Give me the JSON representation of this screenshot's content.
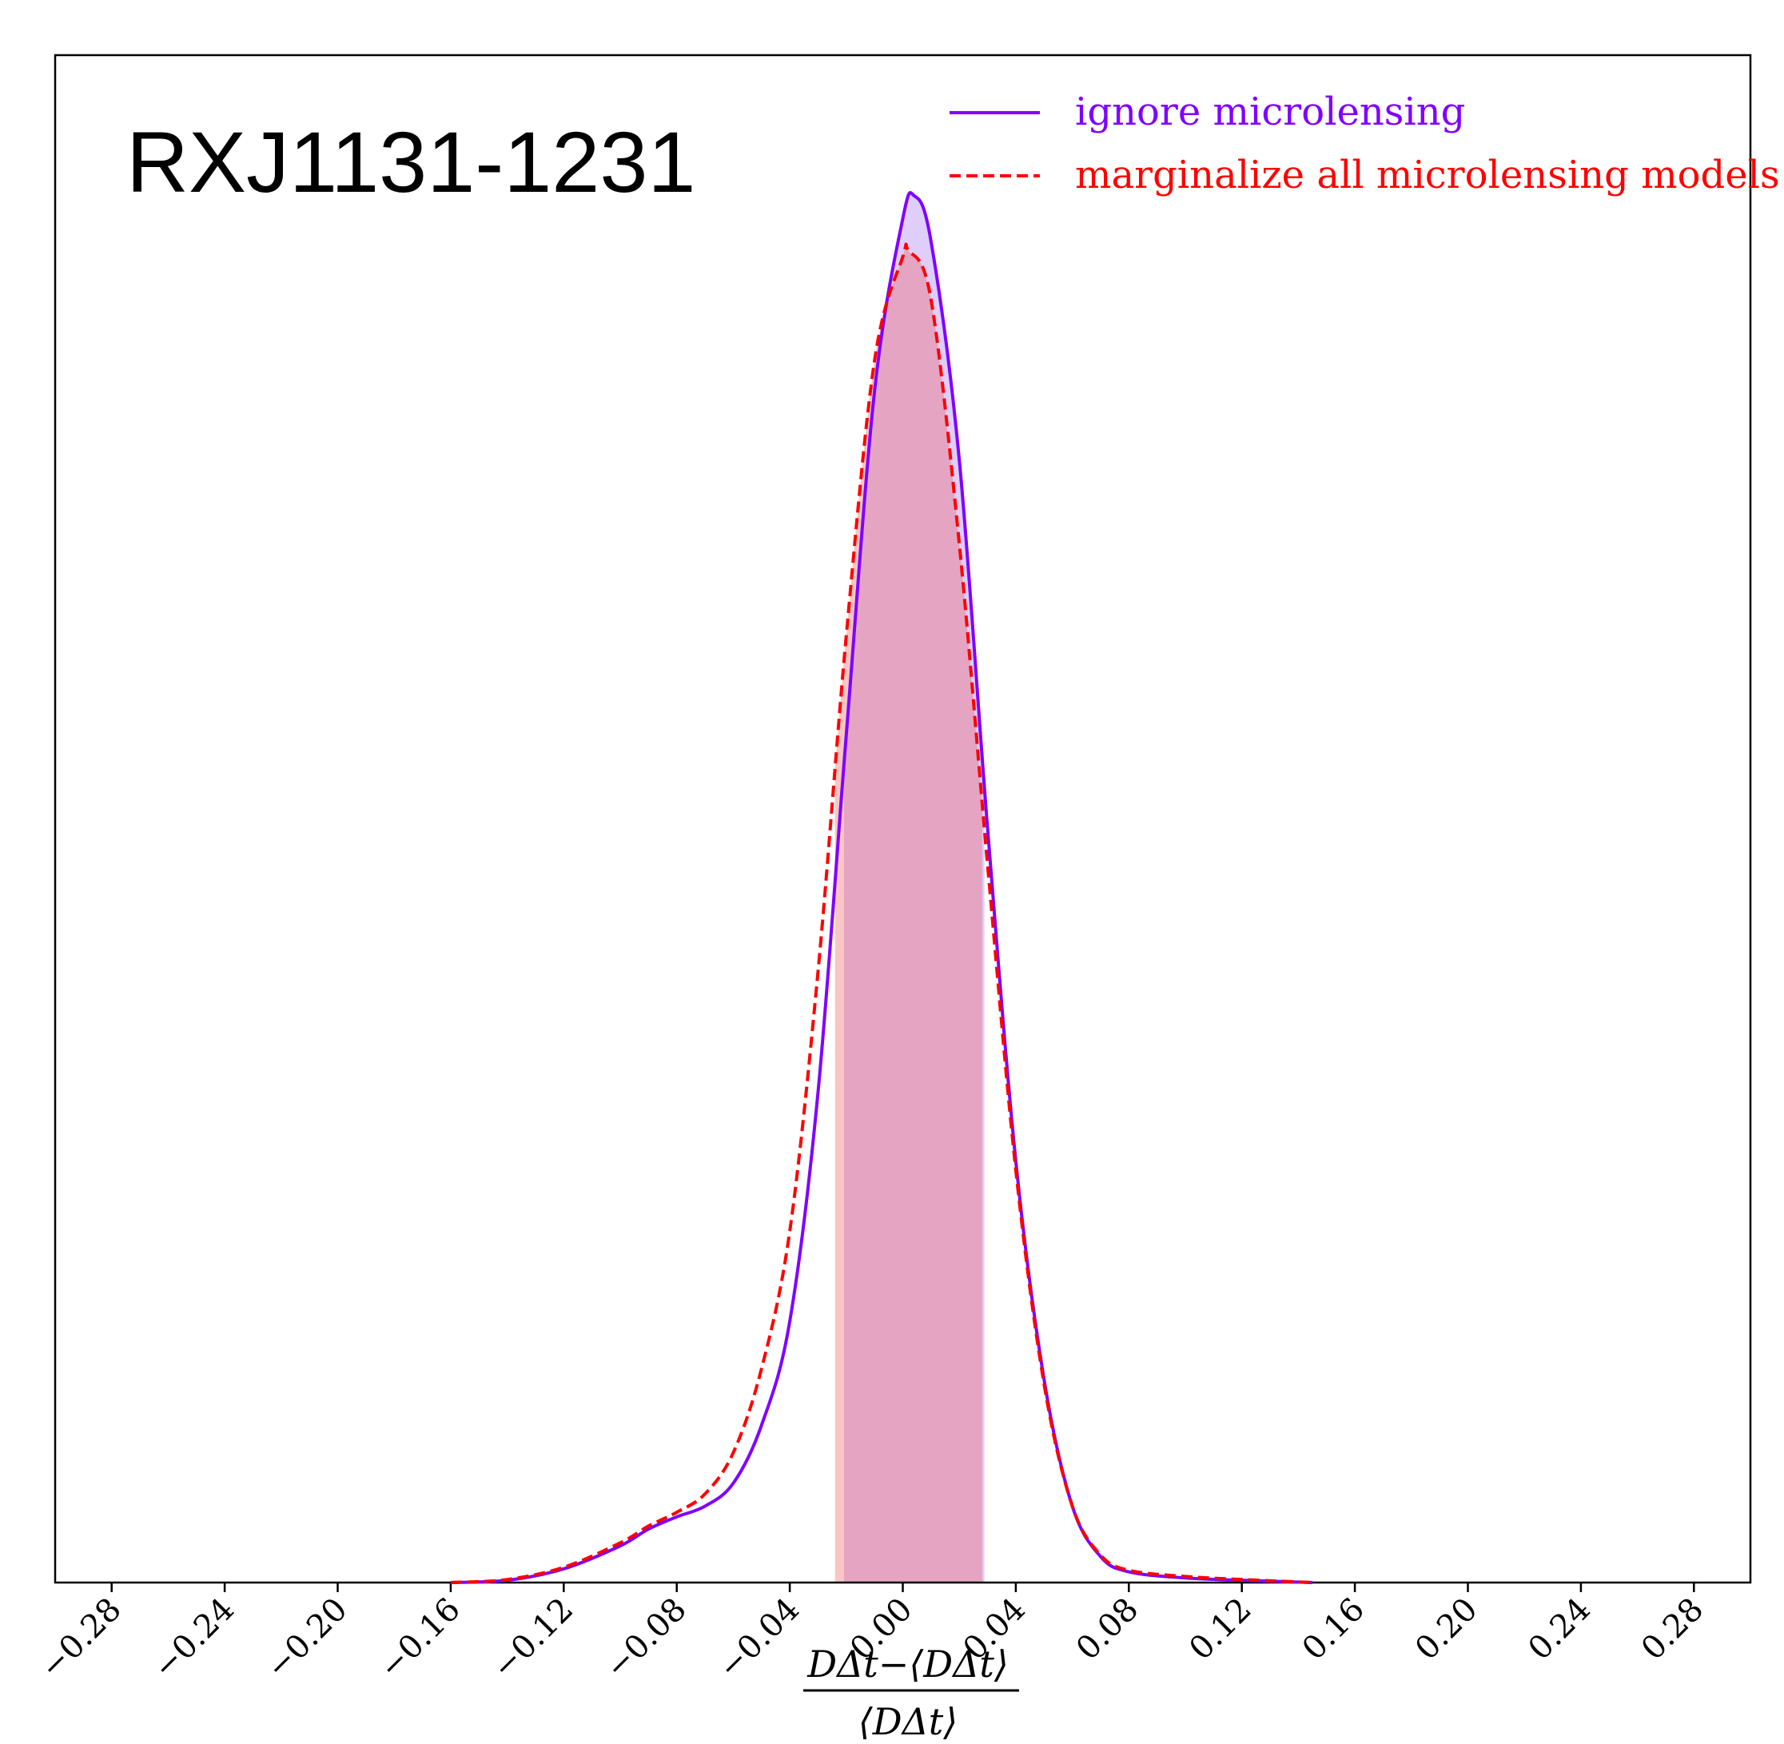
{
  "chart_data": {
    "type": "kde",
    "title": "RXJ1131-1231",
    "xlabel": {
      "numerator": "DΔt−⟨DΔt⟩",
      "denominator": "⟨DΔt⟩"
    },
    "xlim": [
      -0.3,
      0.3
    ],
    "ylim": [
      0,
      1
    ],
    "xticks": [
      {
        "value": -0.28,
        "label": "−0.28"
      },
      {
        "value": -0.24,
        "label": "−0.24"
      },
      {
        "value": -0.2,
        "label": "−0.20"
      },
      {
        "value": -0.16,
        "label": "−0.16"
      },
      {
        "value": -0.12,
        "label": "−0.12"
      },
      {
        "value": -0.08,
        "label": "−0.08"
      },
      {
        "value": -0.04,
        "label": "−0.04"
      },
      {
        "value": 0,
        "label": "0.00"
      },
      0.04,
      0.08,
      0.12,
      0.16,
      {
        "value": 0.2,
        "label": "0.20"
      },
      0.24,
      0.28
    ],
    "series": [
      {
        "name": "ignore microlensing",
        "color": "#8000ff",
        "dash": false,
        "fill": "rgba(150,90,240,0.3)",
        "interval": [
          -0.0208,
          0.0289
        ],
        "x": [
          -0.16,
          -0.14,
          -0.12,
          -0.1,
          -0.09,
          -0.08,
          -0.07,
          -0.06,
          -0.05,
          -0.04,
          -0.03,
          -0.02,
          -0.01,
          0,
          0.004,
          0.01,
          0.02,
          0.03,
          0.04,
          0.05,
          0.06,
          0.07,
          0.08,
          0.1,
          0.12,
          0.145
        ],
        "values": [
          0,
          0.0015,
          0.009,
          0.024,
          0.035,
          0.043,
          0.05,
          0.065,
          0.103,
          0.171,
          0.321,
          0.555,
          0.78,
          0.893,
          0.908,
          0.878,
          0.735,
          0.494,
          0.276,
          0.133,
          0.05,
          0.017,
          0.007,
          0.003,
          0.0015,
          0
        ]
      },
      {
        "name": "marginalize all microlensing models",
        "color": "#ff0000",
        "dash": true,
        "fill": "rgba(240,90,90,0.35)",
        "interval": [
          -0.024,
          0.0281
        ],
        "x": [
          -0.16,
          -0.14,
          -0.12,
          -0.1,
          -0.09,
          -0.08,
          -0.07,
          -0.06,
          -0.05,
          -0.04,
          -0.03,
          -0.02,
          -0.01,
          0,
          0.002,
          0.01,
          0.02,
          0.03,
          0.04,
          0.05,
          0.06,
          0.07,
          0.08,
          0.1,
          0.12,
          0.145
        ],
        "values": [
          0,
          0.002,
          0.01,
          0.026,
          0.037,
          0.046,
          0.058,
          0.085,
          0.14,
          0.23,
          0.4,
          0.62,
          0.8,
          0.868,
          0.872,
          0.84,
          0.68,
          0.47,
          0.27,
          0.13,
          0.05,
          0.018,
          0.008,
          0.004,
          0.002,
          0
        ]
      }
    ]
  }
}
